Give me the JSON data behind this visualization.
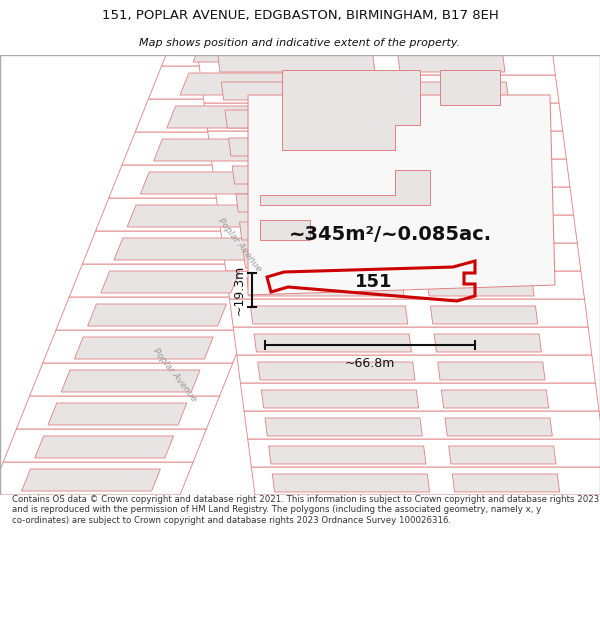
{
  "title": "151, POPLAR AVENUE, EDGBASTON, BIRMINGHAM, B17 8EH",
  "subtitle": "Map shows position and indicative extent of the property.",
  "area_text": "~345m²/~0.085ac.",
  "width_label": "~66.8m",
  "height_label": "~19.3m",
  "property_number": "151",
  "street_name": "Poplar Avenue",
  "footer_text": "Contains OS data © Crown copyright and database right 2021. This information is subject to Crown copyright and database rights 2023 and is reproduced with the permission of HM Land Registry. The polygons (including the associated geometry, namely x, y co-ordinates) are subject to Crown copyright and database rights 2023 Ordnance Survey 100026316.",
  "bg_color": "#ffffff",
  "map_bg": "#ffffff",
  "parcel_line_color": "#e08080",
  "highlight_color": "#cc0000",
  "dim_line_color": "#111111",
  "text_color": "#111111",
  "building_fill": "#e8e4e4",
  "road_fill": "#e0e0e0",
  "parcel_fill": "#ffffff"
}
